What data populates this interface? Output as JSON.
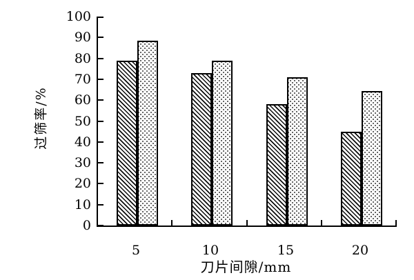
{
  "figure": {
    "background": "#ffffff",
    "text_color": "#000000"
  },
  "chart_data": {
    "type": "bar",
    "title": "",
    "categories": [
      "5",
      "10",
      "15",
      "20"
    ],
    "series": [
      {
        "name": "hatched-series",
        "pattern": "diagonal-hatch",
        "values": [
          79,
          73,
          58,
          45
        ]
      },
      {
        "name": "dotted-series",
        "pattern": "dot-grid",
        "values": [
          88.5,
          79,
          71,
          64.5
        ]
      }
    ],
    "xlabel": "刀片间隙/mm",
    "ylabel": "过筛率/%",
    "ylim": [
      0,
      100
    ],
    "yticks": [
      0,
      10,
      20,
      30,
      40,
      50,
      60,
      70,
      80,
      90,
      100
    ],
    "grid": false,
    "legend": "none",
    "colors": {
      "axis": "#000000",
      "bar_outline": "#000000",
      "hatch_lines": "#0a0a0a",
      "dot_fill": "#3a3a3a",
      "background": "#ffffff"
    }
  }
}
